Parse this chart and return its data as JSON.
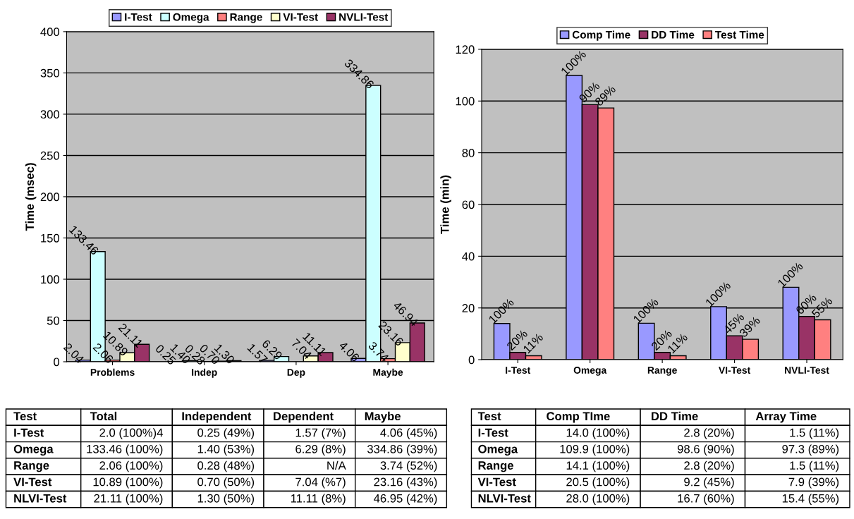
{
  "chart_data": [
    {
      "type": "bar",
      "ylabel": "Time (msec)",
      "categories": [
        "Problems",
        "Indep",
        "Dep",
        "Maybe"
      ],
      "ylim": [
        0,
        400
      ],
      "yticks": [
        0,
        50,
        100,
        150,
        200,
        250,
        300,
        350,
        400
      ],
      "grid": "y",
      "legend": "top",
      "series": [
        {
          "name": "I-Test",
          "color": "#9999ff",
          "values": [
            2.04,
            0.25,
            1.57,
            4.06
          ],
          "value_labels": [
            "2.04",
            "0.25",
            "1.57",
            "4.06"
          ]
        },
        {
          "name": "Omega",
          "color": "#ccffff",
          "values": [
            133.46,
            1.4,
            6.29,
            334.86
          ],
          "value_labels": [
            "133.46",
            "1.40",
            "6.29",
            "334.86"
          ]
        },
        {
          "name": "Range",
          "color": "#ff8080",
          "values": [
            2.06,
            0.28,
            null,
            3.74
          ],
          "value_labels": [
            "2.06",
            "0.28",
            null,
            "3.74"
          ]
        },
        {
          "name": "VI-Test",
          "color": "#ffffcc",
          "values": [
            10.89,
            0.7,
            7.04,
            23.16
          ],
          "value_labels": [
            "10.89",
            "0.70",
            "7.04",
            "23.16"
          ]
        },
        {
          "name": "NVLI-Test",
          "color": "#993366",
          "values": [
            21.11,
            1.3,
            11.11,
            46.94
          ],
          "value_labels": [
            "21.11",
            "1.30",
            "11.11",
            "46.94"
          ]
        }
      ]
    },
    {
      "type": "bar",
      "ylabel": "Time (min)",
      "categories": [
        "I-Test",
        "Omega",
        "Range",
        "VI-Test",
        "NVLI-Test"
      ],
      "ylim": [
        0,
        120
      ],
      "yticks": [
        0,
        20,
        40,
        60,
        80,
        100,
        120
      ],
      "grid": "y",
      "legend": "top",
      "series": [
        {
          "name": "Comp Time",
          "color": "#9999ff",
          "values": [
            14.0,
            109.9,
            14.1,
            20.5,
            28.0
          ]
        },
        {
          "name": "DD Time",
          "color": "#993366",
          "values": [
            2.8,
            98.6,
            2.8,
            9.2,
            16.7
          ]
        },
        {
          "name": "Test Time",
          "color": "#ff8080",
          "values": [
            1.5,
            97.3,
            1.5,
            7.9,
            15.4
          ]
        }
      ],
      "annotations": [
        "100%",
        "20%",
        "11%",
        "100%",
        "90%",
        "89%",
        "100%",
        "20%",
        "11%",
        "100%",
        "45%",
        "39%",
        "100%",
        "60%",
        "55%"
      ]
    },
    {
      "type": "other",
      "ylabel": "Test",
      "categories": [
        "Total",
        "Independent",
        "Dependent",
        "Maybe"
      ],
      "y_categories": [
        "I-Test",
        "Omega",
        "Range",
        "VI-Test",
        "NLVI-Test"
      ],
      "cell_labels": [
        [
          "2.0 (100%)4",
          "0.25 (49%)",
          "1.57 (7%)",
          "4.06 (45%)"
        ],
        [
          "133.46 (100%)",
          "1.40 (53%)",
          "6.29 (8%)",
          "334.86 (39%)"
        ],
        [
          "2.06 (100%)",
          "0.28 (48%)",
          "N/A",
          "3.74 (52%)"
        ],
        [
          "10.89 (100%)",
          "0.70 (50%)",
          "7.04 (%7)",
          "23.16 (43%)"
        ],
        [
          "21.11 (100%)",
          "1.30 (50%)",
          "11.11 (8%)",
          "46.95 (42%)"
        ]
      ]
    },
    {
      "type": "other",
      "ylabel": "Test",
      "categories": [
        "Comp TIme",
        "DD Time",
        "Array Time"
      ],
      "y_categories": [
        "I-Test",
        "Omega",
        "Range",
        "VI-Test",
        "NLVI-Test"
      ],
      "cell_labels": [
        [
          "14.0 (100%)",
          "2.8 (20%)",
          "1.5 (11%)"
        ],
        [
          "109.9 (100%)",
          "98.6 (90%)",
          "97.3 (89%)"
        ],
        [
          "14.1 (100%)",
          "2.8 (20%)",
          "1.5 (11%)"
        ],
        [
          "20.5 (100%)",
          "9.2 (45%)",
          "7.9 (39%)"
        ],
        [
          "28.0 (100%)",
          "16.7 (60%)",
          "15.4 (55%)"
        ]
      ]
    }
  ]
}
